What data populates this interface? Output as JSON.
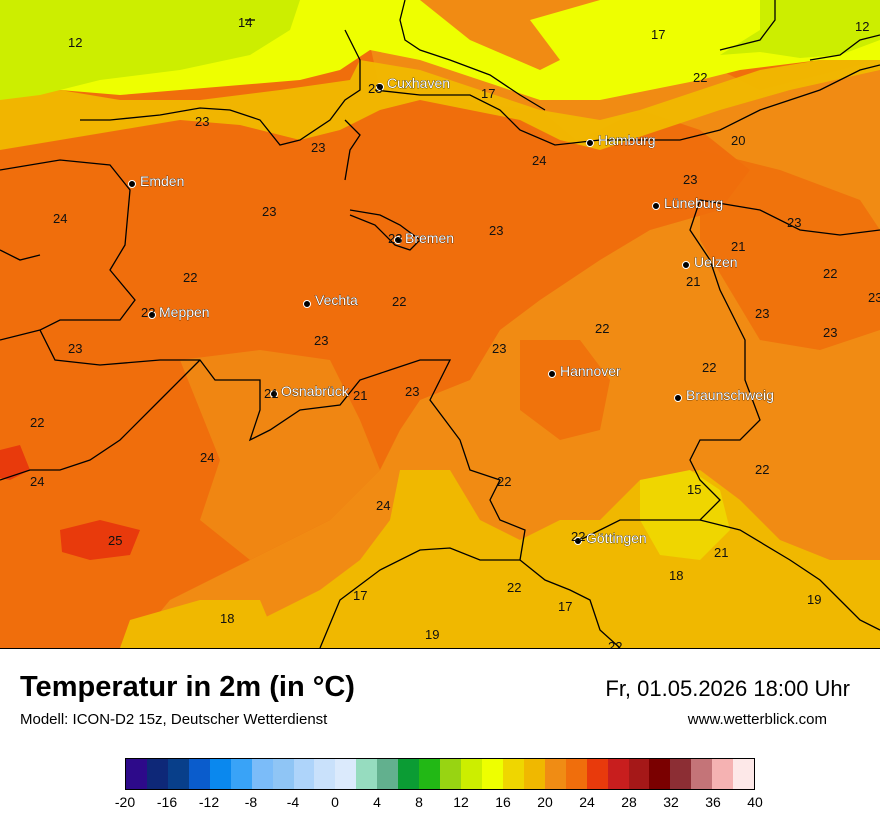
{
  "header": {
    "title": "Temperatur in 2m (in °C)",
    "model": "Modell: ICON-D2 15z, Deutscher Wetterdienst",
    "datetime": "Fr, 01.05.2026 18:00 Uhr",
    "website": "www.wetterblick.com"
  },
  "cities": [
    "Cuxhaven",
    "Hamburg",
    "Emden",
    "Lüneburg",
    "Bremen",
    "Uelzen",
    "Vechta",
    "Meppen",
    "Hannover",
    "Osnabrück",
    "Braunschweig",
    "Göttingen"
  ],
  "values": [
    "12",
    "14",
    "17",
    "12",
    "22",
    "17",
    "23",
    "23",
    "23",
    "20",
    "24",
    "23",
    "24",
    "23",
    "23",
    "23",
    "21",
    "22",
    "21",
    "22",
    "23",
    "22",
    "22",
    "23",
    "23",
    "23",
    "23",
    "23",
    "22",
    "21",
    "23",
    "22",
    "24",
    "24",
    "22",
    "24",
    "22",
    "15",
    "22",
    "25",
    "21",
    "18",
    "22",
    "17",
    "18",
    "17",
    "19",
    "19",
    "22",
    "23",
    "23",
    "21"
  ],
  "legend": {
    "ticks": [
      "-20",
      "-16",
      "-12",
      "-8",
      "-4",
      "0",
      "4",
      "8",
      "12",
      "16",
      "20",
      "24",
      "28",
      "32",
      "36",
      "40"
    ],
    "colors": [
      "#2d0a8a",
      "#0e2878",
      "#083f8a",
      "#0a5ccc",
      "#0a88ee",
      "#39a3f7",
      "#7bbcf9",
      "#8fc5f5",
      "#aed4fa",
      "#c9e1fb",
      "#dbeafc",
      "#96dcbf",
      "#62b08e",
      "#0b9c34",
      "#22b815",
      "#98d412",
      "#ccee00",
      "#eeff00",
      "#efd600",
      "#f0b800",
      "#f08c14",
      "#f06e0c",
      "#e83a0c",
      "#c81e1e",
      "#a51818",
      "#7a0000",
      "#8c2e34",
      "#c47478",
      "#f5b2b2",
      "#fde8e8"
    ]
  }
}
